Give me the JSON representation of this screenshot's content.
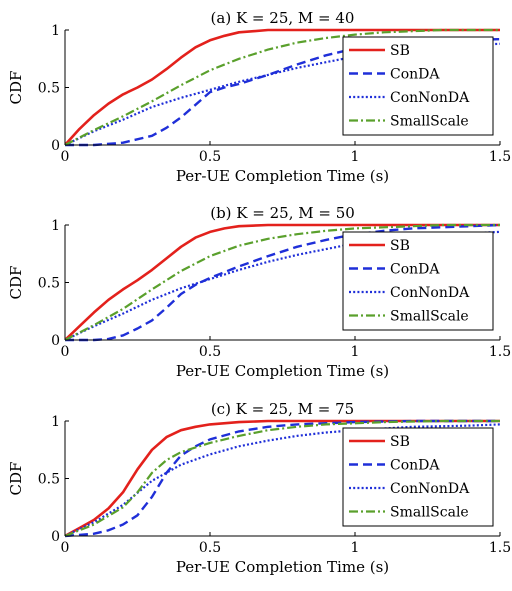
{
  "colors": {
    "SB": "#e3211c",
    "ConDA": "#1f2fd8",
    "ConNonDA": "#1f2fd8",
    "SmallScale": "#5aa02c",
    "axis": "#000000"
  },
  "chart_data": [
    {
      "type": "line",
      "title": "(a) K = 25, M = 40",
      "xlabel": "Per-UE Completion Time (s)",
      "ylabel": "CDF",
      "xlim": [
        0,
        1.5
      ],
      "ylim": [
        0,
        1
      ],
      "xticks": [
        "0",
        "0.5",
        "1",
        "1.5"
      ],
      "yticks": [
        "0",
        "0.5",
        "1"
      ],
      "grid": false,
      "legend_position": "top-right",
      "series": [
        {
          "name": "SB",
          "x": [
            0,
            0.05,
            0.1,
            0.15,
            0.2,
            0.25,
            0.3,
            0.35,
            0.4,
            0.45,
            0.5,
            0.55,
            0.6,
            0.65,
            0.7,
            0.8,
            1.0,
            1.5
          ],
          "y": [
            0,
            0.14,
            0.26,
            0.36,
            0.44,
            0.5,
            0.57,
            0.66,
            0.76,
            0.85,
            0.91,
            0.95,
            0.98,
            0.99,
            1,
            1,
            1,
            1
          ]
        },
        {
          "name": "ConDA",
          "x": [
            0,
            0.1,
            0.2,
            0.3,
            0.35,
            0.4,
            0.45,
            0.5,
            0.55,
            0.6,
            0.7,
            0.8,
            0.9,
            1.0,
            1.1,
            1.2,
            1.3,
            1.5
          ],
          "y": [
            0,
            0,
            0.02,
            0.08,
            0.15,
            0.24,
            0.35,
            0.46,
            0.5,
            0.53,
            0.61,
            0.7,
            0.78,
            0.84,
            0.88,
            0.9,
            0.91,
            0.92
          ]
        },
        {
          "name": "ConNonDA",
          "x": [
            0,
            0.1,
            0.2,
            0.3,
            0.4,
            0.5,
            0.6,
            0.7,
            0.8,
            0.9,
            1.0,
            1.1,
            1.2,
            1.3,
            1.5
          ],
          "y": [
            0,
            0.12,
            0.22,
            0.33,
            0.41,
            0.48,
            0.55,
            0.61,
            0.67,
            0.72,
            0.77,
            0.81,
            0.84,
            0.86,
            0.88
          ]
        },
        {
          "name": "SmallScale",
          "x": [
            0,
            0.1,
            0.2,
            0.3,
            0.4,
            0.5,
            0.6,
            0.7,
            0.8,
            0.9,
            1.0,
            1.1,
            1.2,
            1.3,
            1.4,
            1.5
          ],
          "y": [
            0,
            0.13,
            0.25,
            0.38,
            0.52,
            0.65,
            0.75,
            0.83,
            0.89,
            0.93,
            0.96,
            0.98,
            0.99,
            1,
            1,
            1
          ]
        }
      ]
    },
    {
      "type": "line",
      "title": "(b) K = 25, M = 50",
      "xlabel": "Per-UE Completion Time (s)",
      "ylabel": "CDF",
      "xlim": [
        0,
        1.5
      ],
      "ylim": [
        0,
        1
      ],
      "xticks": [
        "0",
        "0.5",
        "1",
        "1.5"
      ],
      "yticks": [
        "0",
        "0.5",
        "1"
      ],
      "grid": false,
      "legend_position": "top-right",
      "series": [
        {
          "name": "SB",
          "x": [
            0,
            0.05,
            0.1,
            0.15,
            0.2,
            0.25,
            0.3,
            0.35,
            0.4,
            0.45,
            0.5,
            0.55,
            0.6,
            0.7,
            0.8,
            1.0,
            1.5
          ],
          "y": [
            0,
            0.12,
            0.24,
            0.35,
            0.44,
            0.52,
            0.61,
            0.71,
            0.81,
            0.89,
            0.94,
            0.97,
            0.99,
            1,
            1,
            1,
            1
          ]
        },
        {
          "name": "ConDA",
          "x": [
            0,
            0.1,
            0.15,
            0.2,
            0.25,
            0.3,
            0.35,
            0.4,
            0.45,
            0.5,
            0.6,
            0.7,
            0.8,
            0.9,
            1.0,
            1.1,
            1.2,
            1.5
          ],
          "y": [
            0,
            0,
            0.01,
            0.04,
            0.1,
            0.17,
            0.28,
            0.4,
            0.48,
            0.54,
            0.64,
            0.73,
            0.81,
            0.87,
            0.92,
            0.95,
            0.97,
            1
          ]
        },
        {
          "name": "ConNonDA",
          "x": [
            0,
            0.1,
            0.2,
            0.3,
            0.4,
            0.5,
            0.6,
            0.7,
            0.8,
            0.9,
            1.0,
            1.1,
            1.2,
            1.3,
            1.4,
            1.5
          ],
          "y": [
            0,
            0.12,
            0.23,
            0.35,
            0.45,
            0.53,
            0.61,
            0.68,
            0.74,
            0.79,
            0.84,
            0.87,
            0.9,
            0.92,
            0.93,
            0.94
          ]
        },
        {
          "name": "SmallScale",
          "x": [
            0,
            0.1,
            0.2,
            0.3,
            0.4,
            0.5,
            0.6,
            0.7,
            0.8,
            0.9,
            1.0,
            1.1,
            1.2,
            1.3,
            1.5
          ],
          "y": [
            0,
            0.13,
            0.27,
            0.44,
            0.6,
            0.73,
            0.82,
            0.88,
            0.92,
            0.95,
            0.97,
            0.98,
            0.99,
            1,
            1
          ]
        }
      ]
    },
    {
      "type": "line",
      "title": "(c) K = 25, M = 75",
      "xlabel": "Per-UE Completion Time (s)",
      "ylabel": "CDF",
      "xlim": [
        0,
        1.5
      ],
      "ylim": [
        0,
        1
      ],
      "xticks": [
        "0",
        "0.5",
        "1",
        "1.5"
      ],
      "yticks": [
        "0",
        "0.5",
        "1"
      ],
      "grid": false,
      "legend_position": "top-right",
      "series": [
        {
          "name": "SB",
          "x": [
            0,
            0.05,
            0.1,
            0.15,
            0.2,
            0.25,
            0.3,
            0.35,
            0.4,
            0.45,
            0.5,
            0.6,
            0.7,
            0.8,
            1.0,
            1.5
          ],
          "y": [
            0,
            0.07,
            0.14,
            0.24,
            0.38,
            0.58,
            0.75,
            0.86,
            0.92,
            0.95,
            0.97,
            0.99,
            1,
            1,
            1,
            1
          ]
        },
        {
          "name": "ConDA",
          "x": [
            0,
            0.1,
            0.15,
            0.2,
            0.25,
            0.3,
            0.35,
            0.4,
            0.45,
            0.5,
            0.6,
            0.7,
            0.8,
            1.0,
            1.2,
            1.5
          ],
          "y": [
            0,
            0.02,
            0.05,
            0.1,
            0.18,
            0.34,
            0.55,
            0.7,
            0.78,
            0.84,
            0.91,
            0.95,
            0.97,
            0.99,
            1,
            1
          ]
        },
        {
          "name": "ConNonDA",
          "x": [
            0,
            0.1,
            0.2,
            0.3,
            0.4,
            0.5,
            0.6,
            0.7,
            0.8,
            0.9,
            1.0,
            1.2,
            1.4,
            1.5
          ],
          "y": [
            0,
            0.12,
            0.27,
            0.48,
            0.62,
            0.71,
            0.78,
            0.83,
            0.87,
            0.9,
            0.92,
            0.95,
            0.96,
            0.97
          ]
        },
        {
          "name": "SmallScale",
          "x": [
            0,
            0.1,
            0.2,
            0.25,
            0.3,
            0.35,
            0.4,
            0.5,
            0.6,
            0.7,
            0.8,
            0.9,
            1.0,
            1.1,
            1.3,
            1.5
          ],
          "y": [
            0,
            0.1,
            0.25,
            0.38,
            0.55,
            0.66,
            0.73,
            0.81,
            0.87,
            0.92,
            0.95,
            0.97,
            0.98,
            0.99,
            1,
            1
          ]
        }
      ]
    }
  ]
}
